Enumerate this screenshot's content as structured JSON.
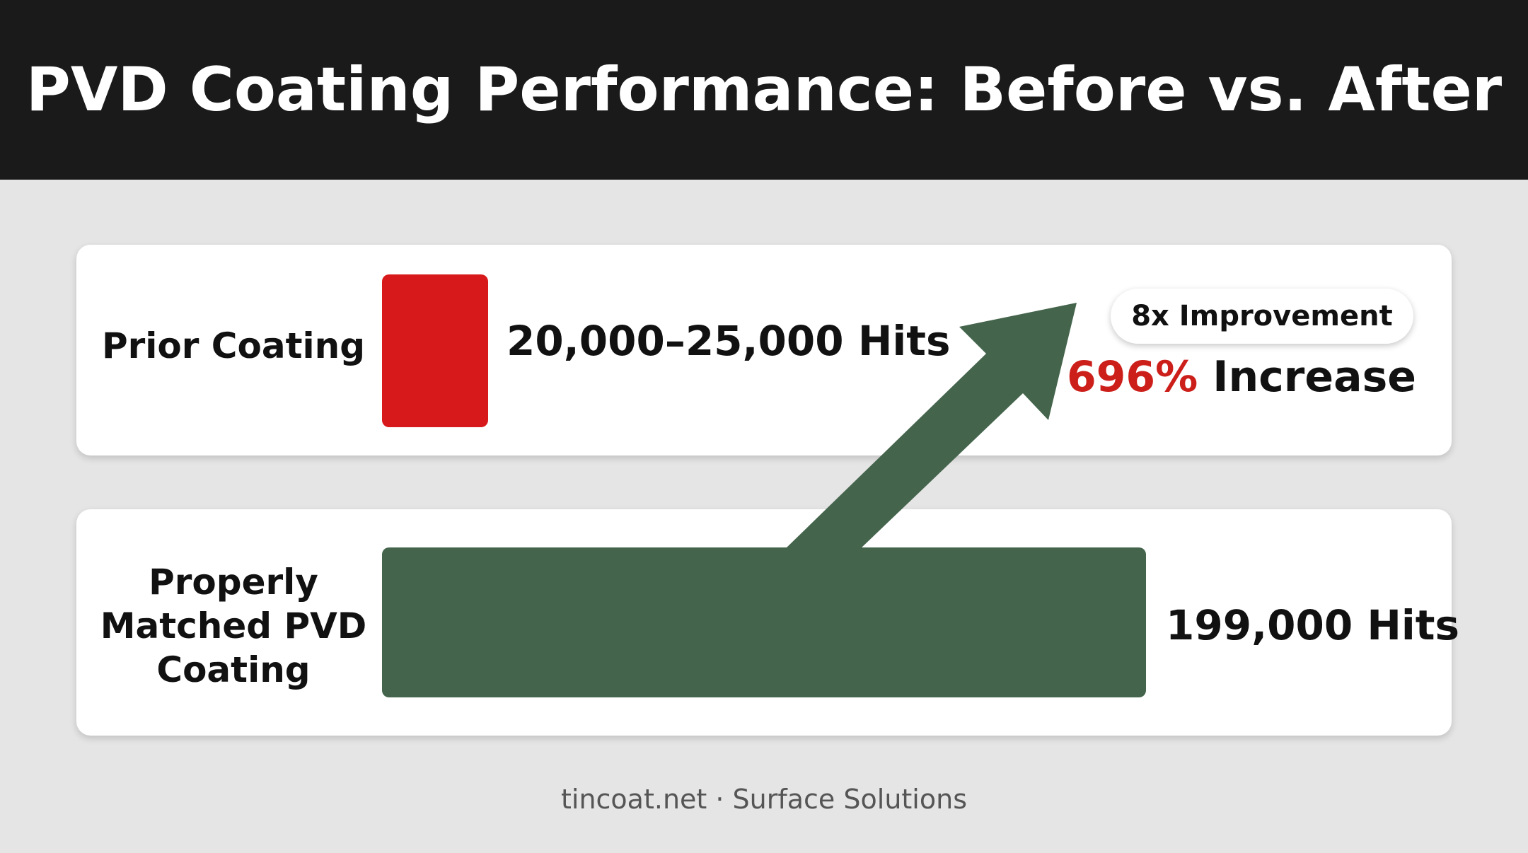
{
  "title": "PVD Coating Performance: Before vs. After",
  "chart_data": {
    "type": "bar",
    "orientation": "horizontal",
    "categories": [
      "Prior Coating",
      "Properly Matched PVD Coating"
    ],
    "values": [
      22500,
      199000
    ],
    "value_labels": [
      "20,000–25,000 Hits",
      "199,000 Hits"
    ],
    "colors": [
      "#d8191b",
      "#44644c"
    ],
    "annotations": {
      "badge": "8x Improvement",
      "increase_pct": "696%",
      "increase_word": "Increase"
    }
  },
  "rows": {
    "prior": {
      "label": "Prior Coating",
      "value_text": "20,000–25,000 Hits"
    },
    "matched": {
      "label_lines": [
        "Properly",
        "Matched PVD",
        "Coating"
      ],
      "value_text": "199,000 Hits"
    }
  },
  "arrow_color": "#44644c",
  "footer": "tincoat.net · Surface Solutions"
}
